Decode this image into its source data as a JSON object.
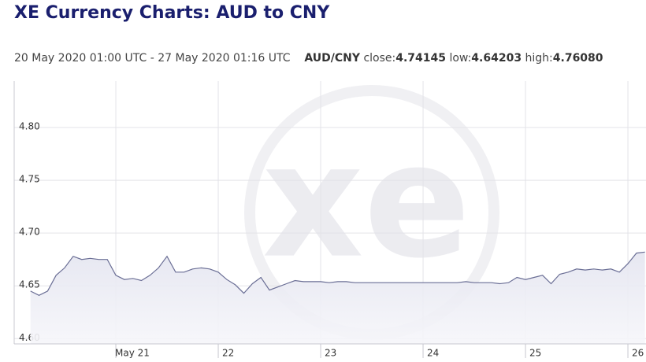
{
  "chart_data": {
    "type": "line",
    "title": "XE Currency Charts: AUD to CNY",
    "summary": {
      "range": "20 May 2020 01:00 UTC - 27 May 2020 01:16 UTC",
      "pair": "AUD/CNY",
      "items": [
        {
          "label": "close:",
          "value": "4.74145"
        },
        {
          "label": "low:",
          "value": "4.64203"
        },
        {
          "label": "high:",
          "value": "4.76080"
        }
      ]
    },
    "watermark": "xe",
    "categories": [
      null,
      null,
      null,
      null,
      null,
      null,
      null,
      null,
      null,
      null,
      "May 21",
      null,
      null,
      null,
      null,
      null,
      null,
      null,
      null,
      null,
      null,
      null,
      "22",
      null,
      null,
      null,
      null,
      null,
      null,
      null,
      null,
      null,
      null,
      null,
      "23",
      null,
      null,
      null,
      null,
      null,
      null,
      null,
      null,
      null,
      null,
      null,
      "24",
      null,
      null,
      null,
      null,
      null,
      null,
      null,
      null,
      null,
      null,
      null,
      "25",
      null,
      null,
      null,
      null,
      null,
      null,
      null,
      null,
      null,
      null,
      null,
      "26",
      null,
      null
    ],
    "values": [
      4.645,
      4.641,
      4.645,
      4.66,
      4.667,
      4.678,
      4.675,
      4.676,
      4.675,
      4.675,
      4.66,
      4.656,
      4.657,
      4.655,
      4.66,
      4.667,
      4.678,
      4.663,
      4.663,
      4.666,
      4.667,
      4.666,
      4.663,
      4.656,
      4.651,
      4.643,
      4.652,
      4.658,
      4.646,
      4.649,
      4.652,
      4.655,
      4.654,
      4.654,
      4.654,
      4.653,
      4.654,
      4.654,
      4.653,
      4.653,
      4.653,
      4.653,
      4.653,
      4.653,
      4.653,
      4.653,
      4.653,
      4.653,
      4.653,
      4.653,
      4.653,
      4.654,
      4.653,
      4.653,
      4.653,
      4.652,
      4.653,
      4.658,
      4.656,
      4.658,
      4.66,
      4.652,
      4.661,
      4.663,
      4.666,
      4.665,
      4.666,
      4.665,
      4.666,
      4.663,
      4.671,
      4.681,
      4.682
    ],
    "color": "#6a6e95",
    "fill": "#e8e9f3",
    "ylim": [
      4.595,
      4.844
    ],
    "yticks": [
      {
        "value": 4.6,
        "label": "4.60"
      },
      4.65,
      {
        "value": 4.7,
        "label": "4.70"
      },
      4.75,
      {
        "value": 4.8,
        "label": "4.80"
      }
    ],
    "grid": true
  }
}
